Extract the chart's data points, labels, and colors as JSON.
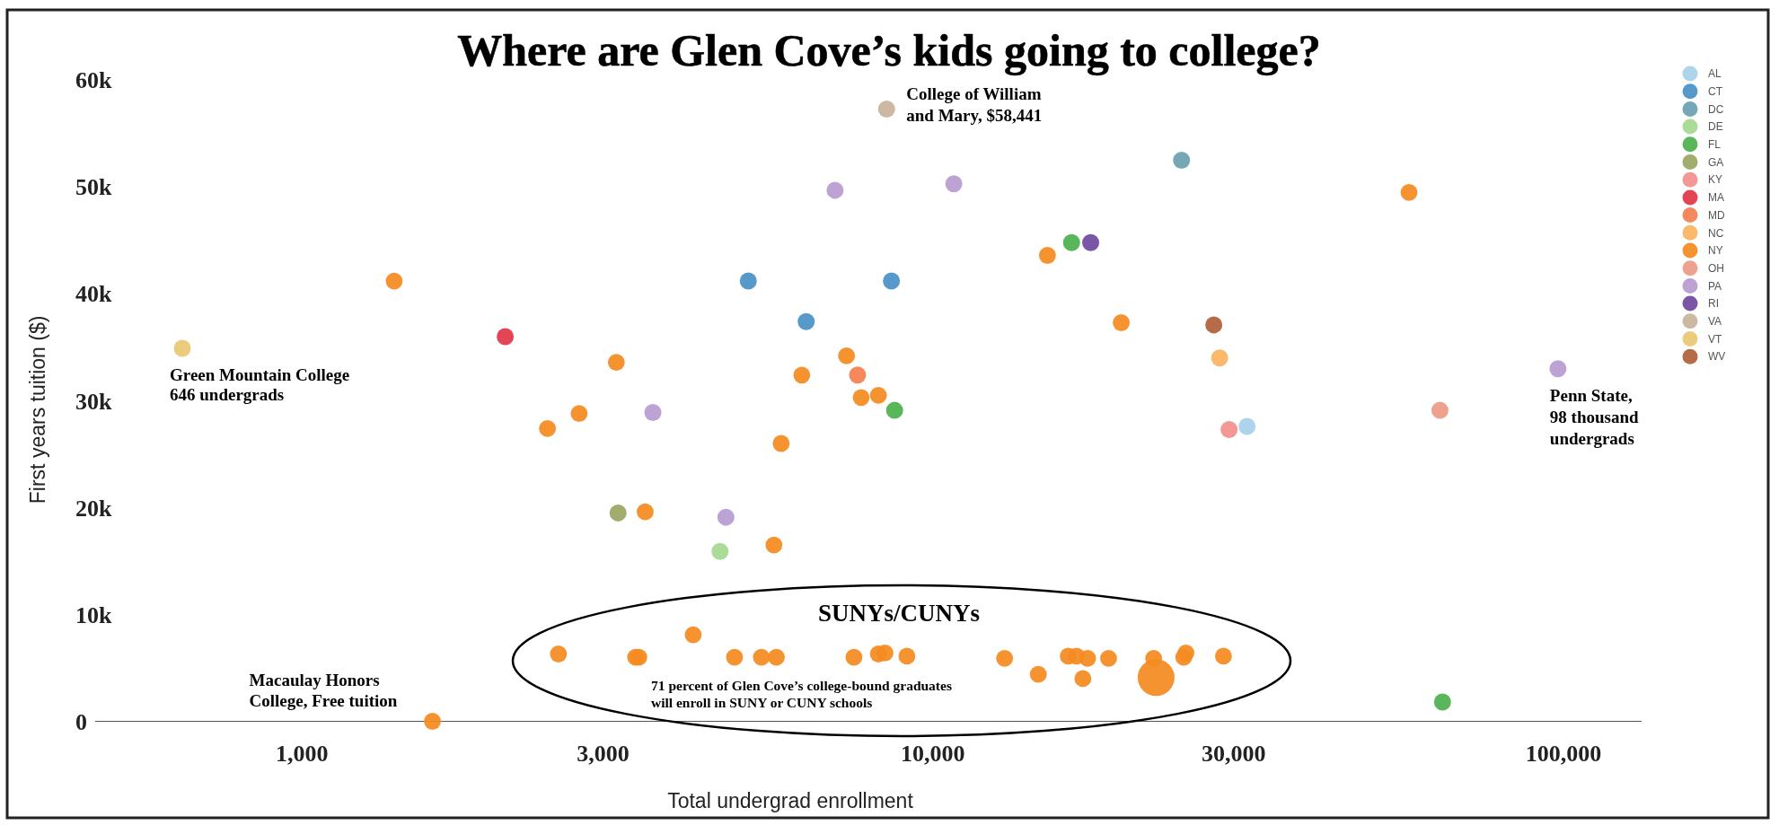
{
  "chart_data": {
    "type": "scatter",
    "title": "Where are Glen Cove’s kids going to college?",
    "xlabel": "Total undergrad enrollment",
    "ylabel": "First years tuition ($)",
    "log": "x",
    "xlim": [
      470,
      133000
    ],
    "ylim": [
      0,
      60000
    ],
    "xticks": [
      {
        "value": 1000,
        "label": "1,000"
      },
      {
        "value": 3000,
        "label": "3,000"
      },
      {
        "value": 10000,
        "label": "10,000"
      },
      {
        "value": 30000,
        "label": "30,000"
      },
      {
        "value": 100000,
        "label": "100,000"
      }
    ],
    "yticks": [
      0,
      {
        "value": 10000,
        "label": "10k"
      },
      {
        "value": 20000,
        "label": "20k"
      },
      {
        "value": 30000,
        "label": "30k"
      },
      {
        "value": 40000,
        "label": "40k"
      },
      {
        "value": 50000,
        "label": "50k"
      },
      {
        "value": 60000,
        "label": "60k"
      }
    ],
    "legend": "right",
    "marker": "circle",
    "series": [
      {
        "name": "AL",
        "color": "#a6d0e8",
        "x": [
          31500
        ],
        "values": [
          27600
        ]
      },
      {
        "name": "CT",
        "color": "#4a90c8",
        "x": [
          5100,
          6300,
          8600
        ],
        "values": [
          41200,
          37400,
          41200
        ]
      },
      {
        "name": "DC",
        "color": "#6a9fb0",
        "x": [
          24800
        ],
        "values": [
          52500
        ]
      },
      {
        "name": "DE",
        "color": "#a3d88f",
        "x": [
          4600
        ],
        "values": [
          15900
        ]
      },
      {
        "name": "FL",
        "color": "#4cb04c",
        "x": [
          8700,
          16600,
          64300
        ],
        "values": [
          29100,
          44800,
          1800
        ]
      },
      {
        "name": "GA",
        "color": "#98a65f",
        "x": [
          3170
        ],
        "values": [
          19500
        ]
      },
      {
        "name": "KY",
        "color": "#f28e8e",
        "x": [
          29500
        ],
        "values": [
          27300
        ]
      },
      {
        "name": "MA",
        "color": "#e03545",
        "x": [
          2100
        ],
        "values": [
          36000
        ]
      },
      {
        "name": "MD",
        "color": "#f47f4f",
        "x": [
          7600
        ],
        "values": [
          32400
        ]
      },
      {
        "name": "NC",
        "color": "#fbb35e",
        "x": [
          28500
        ],
        "values": [
          34000
        ]
      },
      {
        "name": "NY",
        "color": "#f58a1f",
        "type": "bubble",
        "x": [
          1400,
          1610,
          2450,
          2750,
          3150,
          3500,
          5600,
          5750,
          6200,
          7300,
          7700,
          8200,
          15200,
          19900,
          56900,
          2550,
          3380,
          3420,
          4170,
          4850,
          5350,
          5650,
          7500,
          8200,
          8400,
          9100,
          13000,
          14700,
          16400,
          16900,
          17300,
          17600,
          19000,
          22400,
          22600,
          25000,
          25200,
          28900
        ],
        "values": [
          41200,
          0,
          27400,
          28800,
          33600,
          19600,
          16500,
          26000,
          32400,
          34200,
          30300,
          30500,
          43600,
          37300,
          49500,
          6300,
          6000,
          6000,
          8100,
          6000,
          6000,
          6000,
          6000,
          6300,
          6400,
          6100,
          5900,
          4400,
          6100,
          6100,
          4000,
          5900,
          5900,
          5900,
          4100,
          6000,
          6400,
          6100
        ],
        "sizes": [
          0.21,
          0.21,
          0.21,
          0.21,
          0.21,
          0.21,
          0.21,
          0.21,
          0.21,
          0.21,
          0.21,
          0.21,
          0.21,
          0.21,
          0.21,
          0.21,
          0.21,
          0.21,
          0.21,
          0.21,
          0.21,
          0.21,
          0.21,
          0.21,
          0.21,
          0.21,
          0.21,
          0.21,
          0.21,
          0.21,
          0.21,
          0.21,
          0.21,
          0.21,
          1,
          0.21,
          0.21,
          0.21
        ]
      },
      {
        "name": "OH",
        "color": "#ec9a85",
        "x": [
          63700
        ],
        "values": [
          29100
        ]
      },
      {
        "name": "PA",
        "color": "#b79bd0",
        "x": [
          3600,
          4700,
          7000,
          10800,
          98000
        ],
        "values": [
          28900,
          19100,
          49700,
          50300,
          33000
        ]
      },
      {
        "name": "RI",
        "color": "#7048a0",
        "x": [
          17800
        ],
        "values": [
          44800
        ]
      },
      {
        "name": "VA",
        "color": "#c9b39b",
        "x": [
          8450
        ],
        "values": [
          57300
        ]
      },
      {
        "name": "VT",
        "color": "#e8c871",
        "x": [
          646
        ],
        "values": [
          34900
        ]
      },
      {
        "name": "WV",
        "color": "#b0603a",
        "x": [
          27900
        ],
        "values": [
          37100
        ]
      }
    ],
    "annotations": [
      {
        "text": "College of William\nand Mary, $58,441",
        "x": 8450,
        "y": 57300
      },
      {
        "text": "Green Mountain College\n646 undergrads",
        "x": 646,
        "y": 34900
      },
      {
        "text": "Penn State,\n98 thousand\nundergrads",
        "x": 98000,
        "y": 33000
      },
      {
        "text": "Macaulay Honors\nCollege, Free tuition",
        "x": 1610,
        "y": 0
      },
      "SUNYs/CUNYs",
      "71 percent of Glen Cove’s college-bound graduates\nwill enroll in SUNY or CUNY schools"
    ]
  }
}
